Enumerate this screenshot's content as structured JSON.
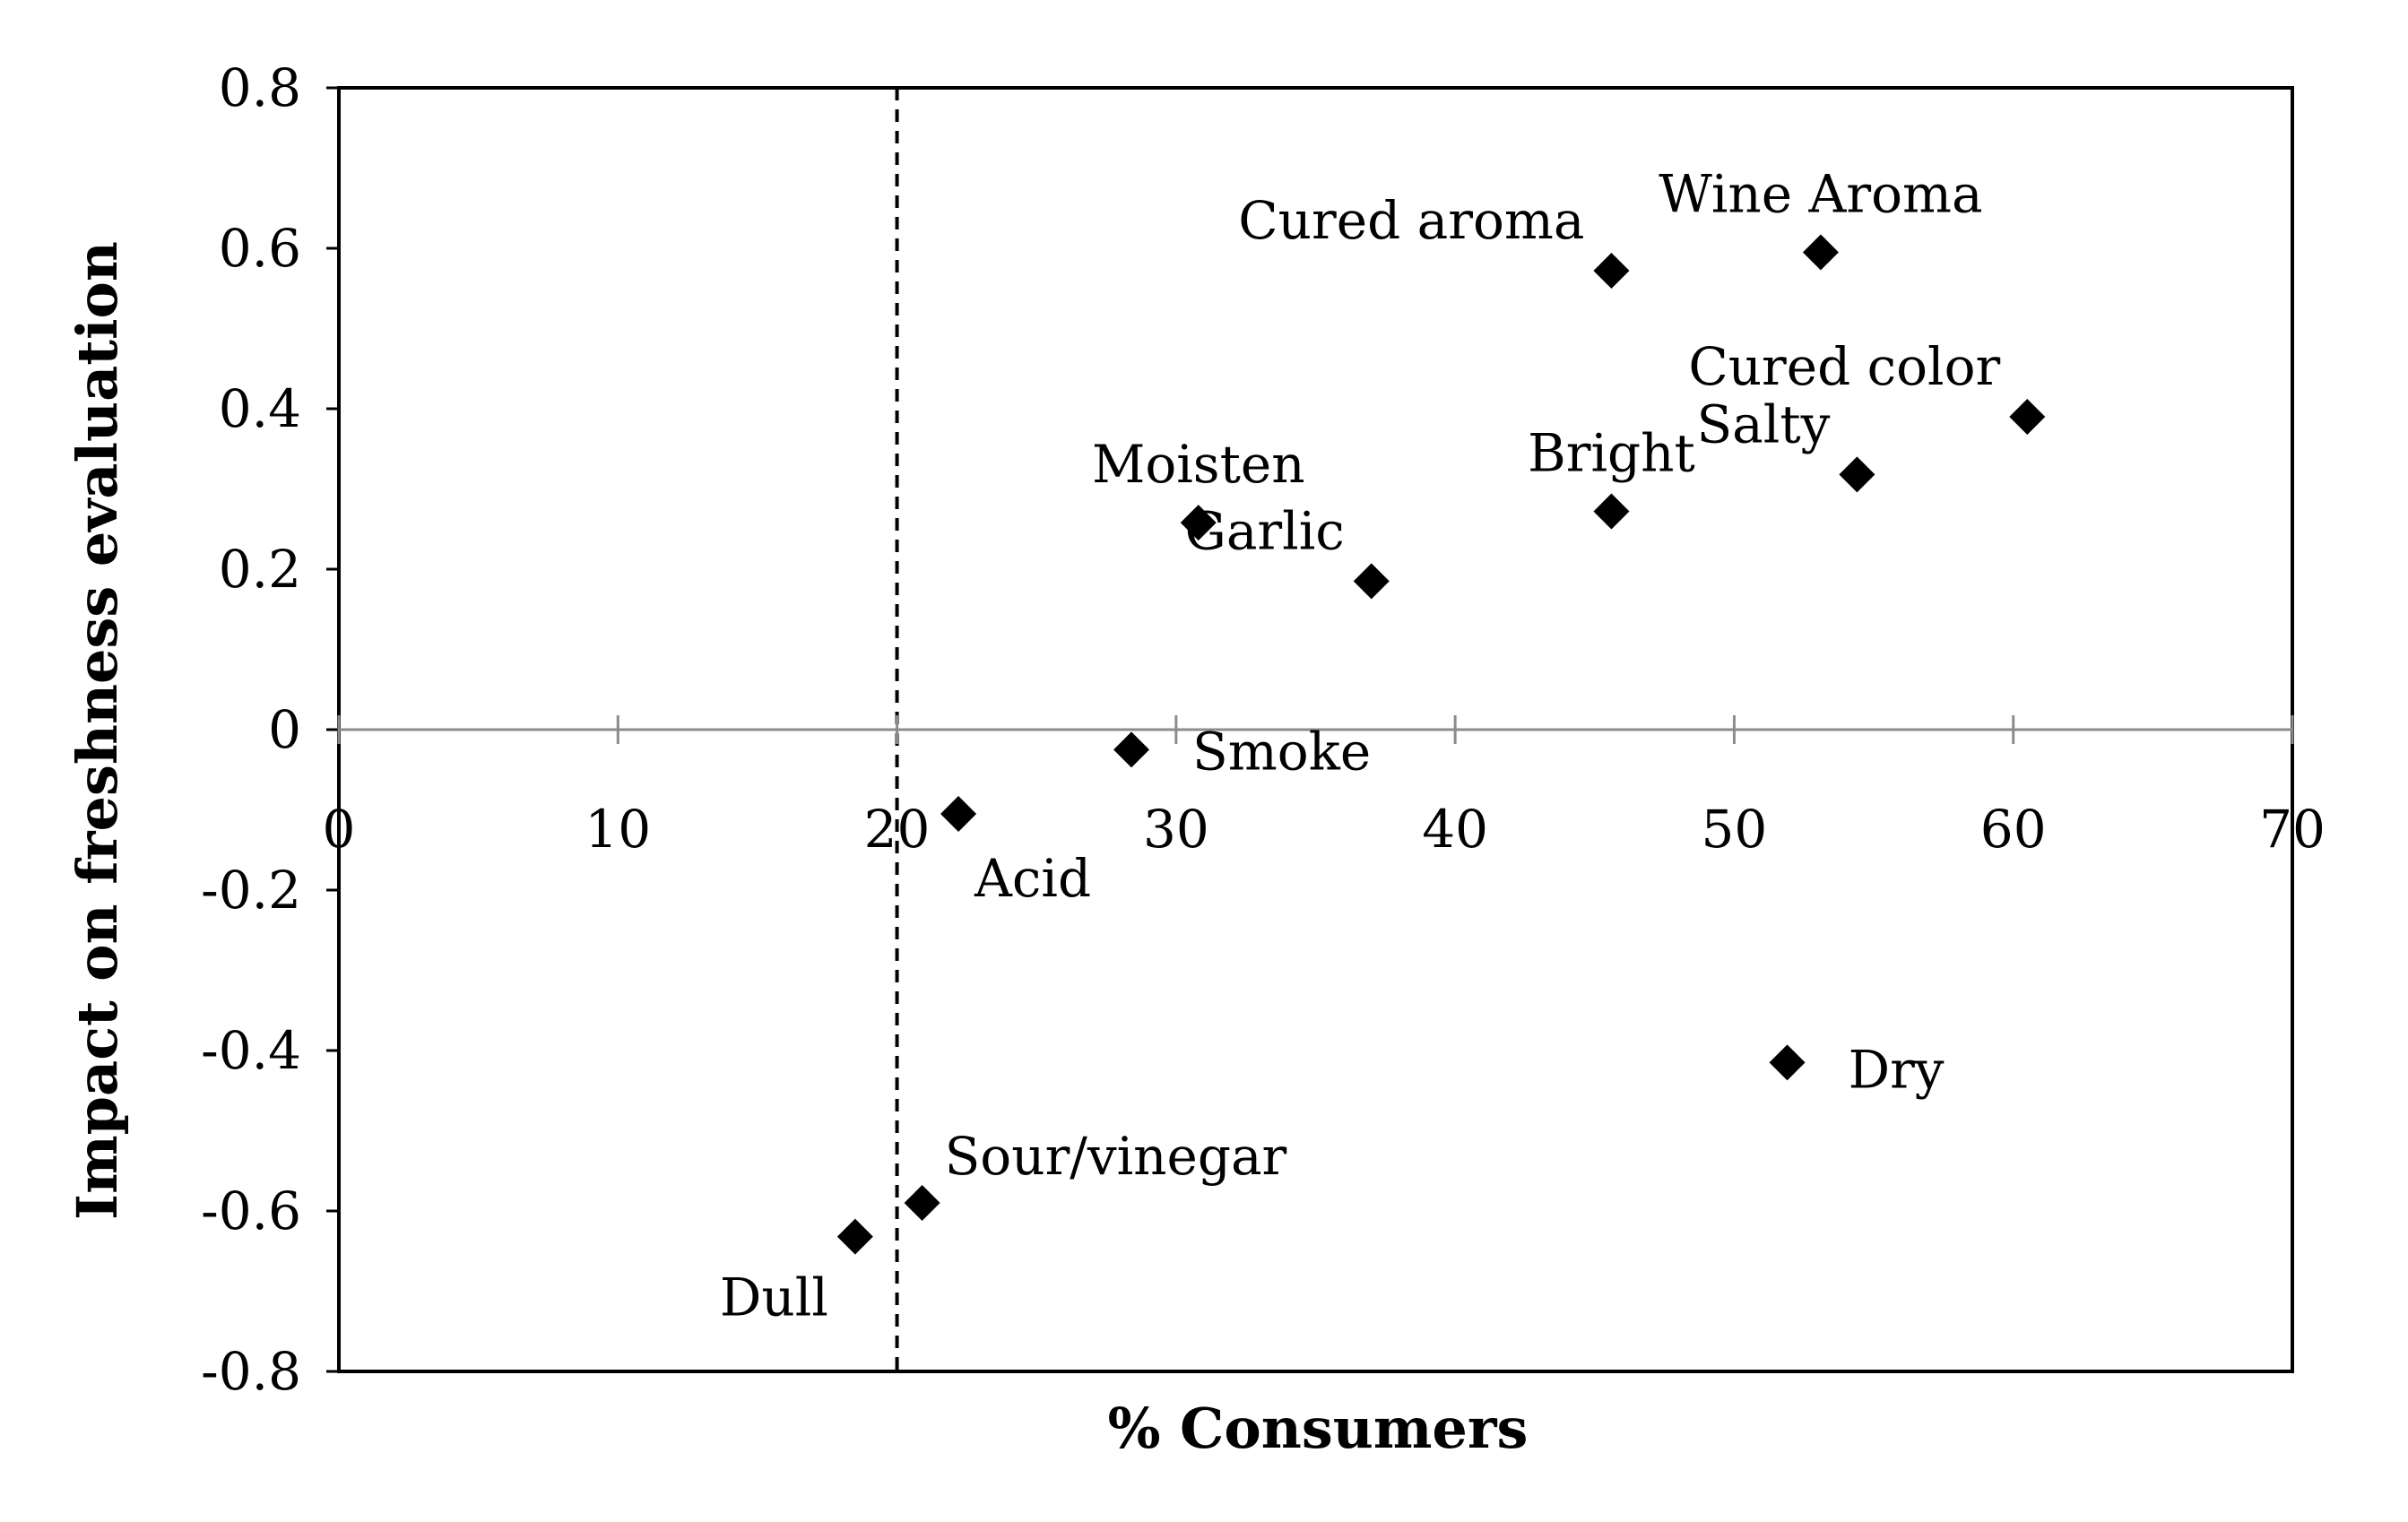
{
  "chart_data": {
    "type": "scatter",
    "title": "",
    "xlabel": "% Consumers",
    "ylabel": "Impact on freshness evaluation",
    "xlim": [
      0,
      70
    ],
    "ylim": [
      -0.8,
      0.8
    ],
    "xticks": [
      0,
      10,
      20,
      30,
      40,
      50,
      60,
      70
    ],
    "xtick_labels": [
      "0",
      "10",
      "20",
      "30",
      "40",
      "50",
      "60",
      "70"
    ],
    "yticks": [
      0.8,
      0.6,
      0.4,
      0.2,
      0,
      -0.2,
      -0.4,
      -0.6,
      -0.8
    ],
    "ytick_labels": [
      "0.8",
      "0.6",
      "0.4",
      "0.2",
      "0",
      "-0.2",
      "-0.4",
      "-0.6",
      "-0.8"
    ],
    "grid": false,
    "marker": "diamond",
    "marker_color": "#000000",
    "reference_line": {
      "orientation": "vertical",
      "x": 20,
      "style": "dashed"
    },
    "points": [
      {
        "label": "Wine Aroma",
        "x": 53.1,
        "y": 0.595,
        "label_pos": "above"
      },
      {
        "label": "Cured aroma",
        "x": 45.6,
        "y": 0.572,
        "label_pos": "above-left"
      },
      {
        "label": "Cured color",
        "x": 60.5,
        "y": 0.39,
        "label_pos": "above-left"
      },
      {
        "label": "Salty",
        "x": 54.4,
        "y": 0.318,
        "label_pos": "above-left"
      },
      {
        "label": "Bright",
        "x": 45.6,
        "y": 0.272,
        "label_pos": "above"
      },
      {
        "label": "Moisten",
        "x": 30.8,
        "y": 0.258,
        "label_pos": "above"
      },
      {
        "label": "Garlic",
        "x": 37.0,
        "y": 0.185,
        "label_pos": "above-left"
      },
      {
        "label": "Smoke",
        "x": 28.4,
        "y": -0.025,
        "label_pos": "right-below"
      },
      {
        "label": "Acid",
        "x": 22.2,
        "y": -0.105,
        "label_pos": "below"
      },
      {
        "label": "Dry",
        "x": 51.9,
        "y": -0.415,
        "label_pos": "right"
      },
      {
        "label": "Sour/vinegar",
        "x": 20.9,
        "y": -0.59,
        "label_pos": "above-right"
      },
      {
        "label": "Dull",
        "x": 18.5,
        "y": -0.632,
        "label_pos": "below-left"
      }
    ]
  }
}
